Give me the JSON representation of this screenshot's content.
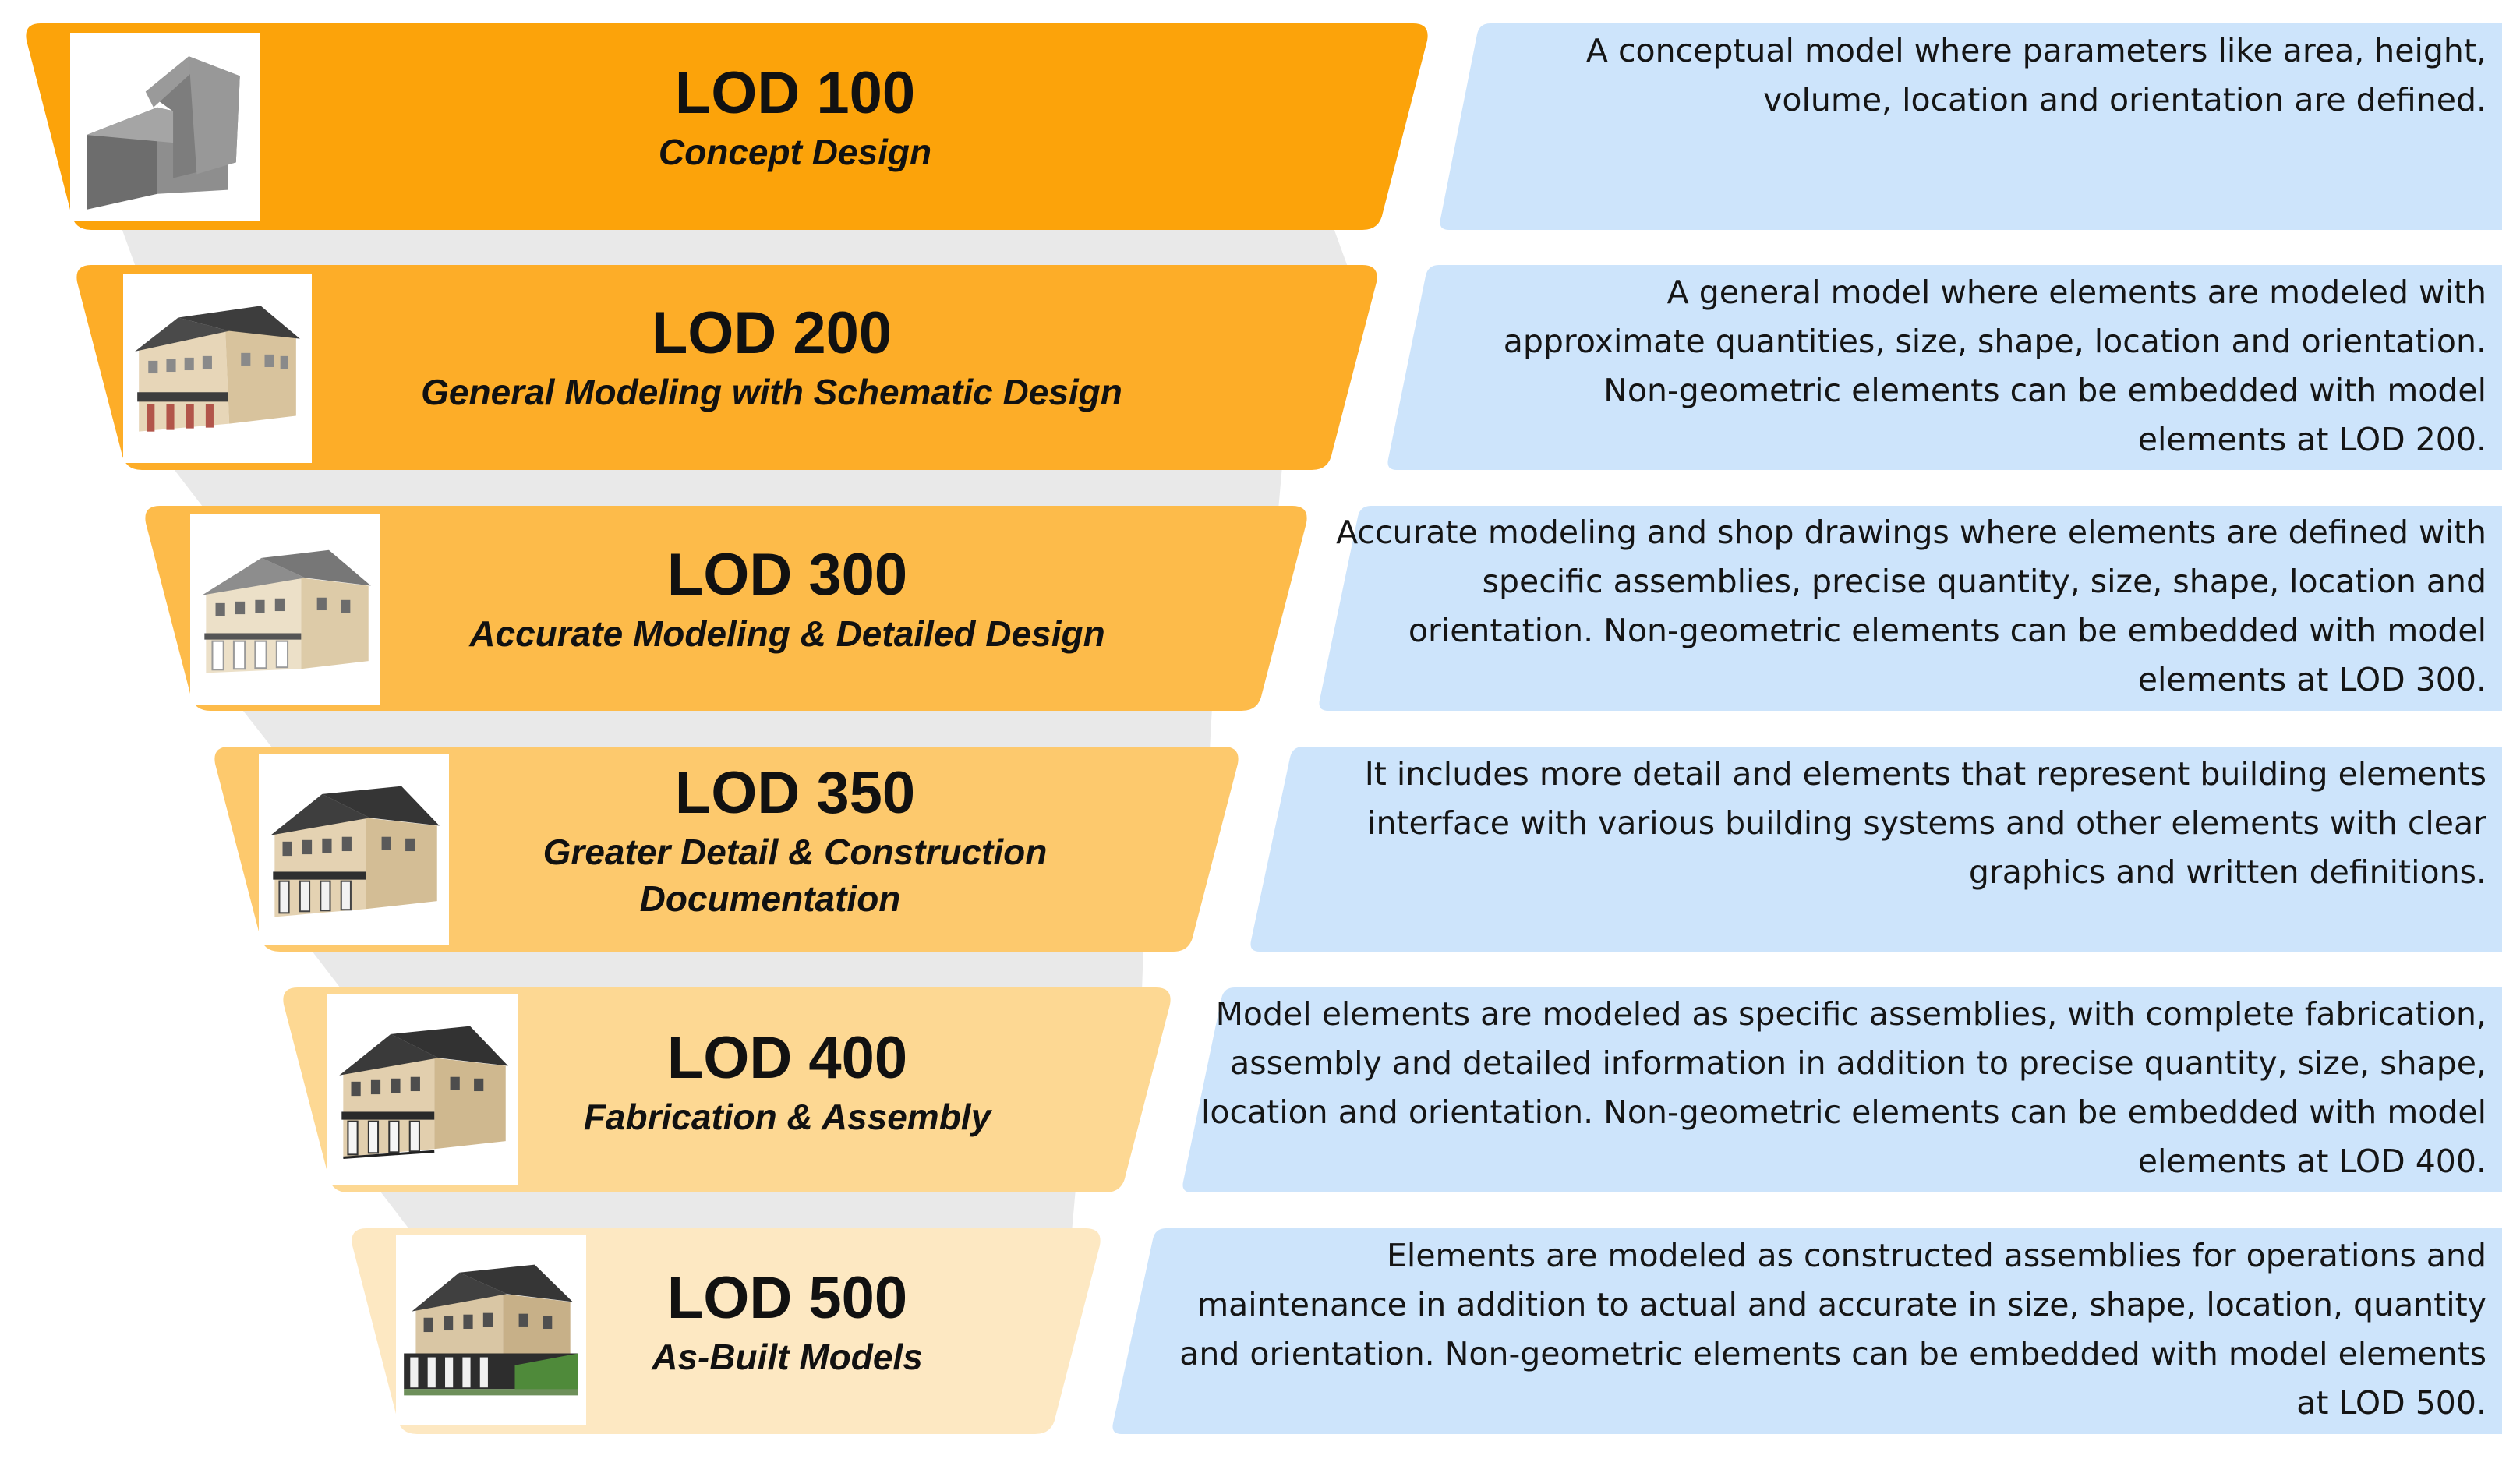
{
  "colors": {
    "band_fills": [
      "#fca30a",
      "#fdad28",
      "#fdbb4a",
      "#fdc96d",
      "#fdd893",
      "#fde8c2"
    ],
    "connector_fill": "#e9e9e9",
    "description_fill": "#cde4fb",
    "text": "#111111"
  },
  "levels": [
    {
      "title": "LOD 100",
      "subtitle": "Concept Design",
      "thumbnail_icon": "massing-block-icon",
      "description": "A conceptual model where parameters like area, height, volume, location and orientation are defined."
    },
    {
      "title": "LOD 200",
      "subtitle": "General Modeling with Schematic Design",
      "thumbnail_icon": "schematic-building-icon",
      "description": "A general model where elements are modeled with approximate quantities, size, shape, location and orientation. Non-geometric elements can be embedded with model elements at LOD 200."
    },
    {
      "title": "LOD 300",
      "subtitle": "Accurate Modeling & Detailed Design",
      "thumbnail_icon": "detailed-building-icon",
      "description": "Accurate modeling and shop drawings where elements are defined with specific assemblies, precise quantity, size, shape, location and orientation. Non-geometric elements can be embedded with model elements at LOD 300."
    },
    {
      "title": "LOD 350",
      "subtitle_line1": "Greater Detail  & Construction",
      "subtitle_line2": "Documentation",
      "thumbnail_icon": "construction-building-icon",
      "description": "It includes more detail and elements that represent building elements interface with various building systems and other elements with clear graphics and written definitions."
    },
    {
      "title": "LOD 400",
      "subtitle": "Fabrication & Assembly",
      "thumbnail_icon": "fabrication-building-icon",
      "description": "Model elements are modeled as specific assemblies, with complete fabrication, assembly and detailed information in addition to precise quantity, size, shape, location and orientation. Non-geometric elements can be embedded with model elements at LOD 400."
    },
    {
      "title": "LOD 500",
      "subtitle": "As-Built Models",
      "thumbnail_icon": "as-built-building-icon",
      "description": "Elements are modeled as constructed assemblies for operations and maintenance in addition to actual and accurate in size, shape, location, quantity and orientation. Non-geometric elements can be embedded with model elements at LOD 500."
    }
  ]
}
